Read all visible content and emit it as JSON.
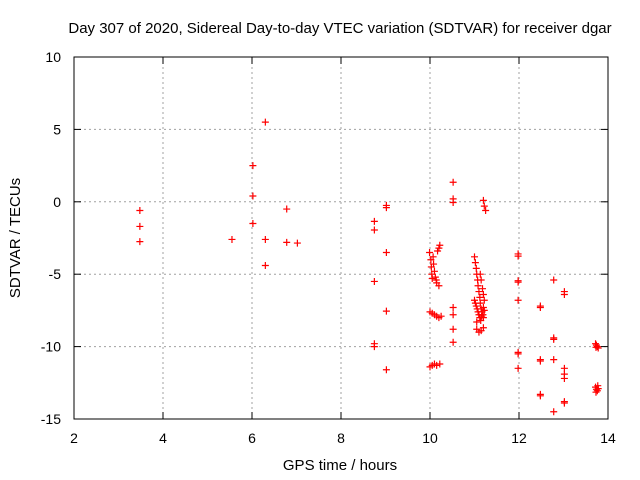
{
  "chart_data": {
    "type": "scatter",
    "title": "Day 307 of 2020, Sidereal Day-to-day VTEC variation (SDTVAR) for receiver dgar",
    "xlabel": "GPS time / hours",
    "ylabel": "SDTVAR / TECUs",
    "xlim": [
      2,
      14
    ],
    "ylim": [
      -15,
      10
    ],
    "xticks": [
      "2",
      "4",
      "6",
      "8",
      "10",
      "12",
      "14"
    ],
    "yticks": [
      "10",
      "5",
      "0",
      "-5",
      "-10",
      "-15"
    ],
    "xtick_values": [
      2,
      4,
      6,
      8,
      10,
      12,
      14
    ],
    "ytick_values": [
      10,
      5,
      0,
      -5,
      -10,
      -15
    ],
    "grid": true,
    "marker": "+",
    "color": "#ff0000",
    "series": [
      {
        "name": "SDTVAR",
        "points": [
          [
            3.48,
            -0.6
          ],
          [
            3.48,
            -1.7
          ],
          [
            3.48,
            -2.75
          ],
          [
            5.55,
            -2.6
          ],
          [
            6.02,
            2.5
          ],
          [
            6.02,
            0.4
          ],
          [
            6.02,
            -1.5
          ],
          [
            6.3,
            5.5
          ],
          [
            6.3,
            -2.6
          ],
          [
            6.3,
            -4.4
          ],
          [
            6.78,
            -0.5
          ],
          [
            6.78,
            -2.8
          ],
          [
            7.02,
            -2.85
          ],
          [
            8.75,
            -1.35
          ],
          [
            8.75,
            -1.95
          ],
          [
            8.75,
            -5.5
          ],
          [
            8.75,
            -9.8
          ],
          [
            8.75,
            -10.0
          ],
          [
            9.02,
            -0.25
          ],
          [
            9.02,
            -0.4
          ],
          [
            9.02,
            -3.5
          ],
          [
            9.02,
            -7.55
          ],
          [
            9.02,
            -11.6
          ],
          [
            9.99,
            -3.5
          ],
          [
            10.02,
            -4.0
          ],
          [
            10.03,
            -4.5
          ],
          [
            10.04,
            -5.0
          ],
          [
            10.05,
            -5.3
          ],
          [
            10.07,
            -3.8
          ],
          [
            10.08,
            -4.3
          ],
          [
            10.1,
            -4.8
          ],
          [
            10.12,
            -5.2
          ],
          [
            10.14,
            -5.4
          ],
          [
            10.17,
            -3.4
          ],
          [
            10.2,
            -3.2
          ],
          [
            10.22,
            -3.0
          ],
          [
            10.15,
            -5.6
          ],
          [
            10.2,
            -5.8
          ],
          [
            10.0,
            -7.6
          ],
          [
            10.05,
            -7.7
          ],
          [
            10.1,
            -7.8
          ],
          [
            10.15,
            -7.9
          ],
          [
            10.2,
            -8.0
          ],
          [
            10.25,
            -7.9
          ],
          [
            10.0,
            -11.4
          ],
          [
            10.05,
            -11.3
          ],
          [
            10.1,
            -11.2
          ],
          [
            10.15,
            -11.3
          ],
          [
            10.22,
            -11.2
          ],
          [
            10.52,
            1.35
          ],
          [
            10.52,
            0.2
          ],
          [
            10.52,
            -0.05
          ],
          [
            10.52,
            -7.3
          ],
          [
            10.52,
            -7.8
          ],
          [
            10.52,
            -8.8
          ],
          [
            10.52,
            -9.7
          ],
          [
            11.0,
            -3.8
          ],
          [
            11.02,
            -4.2
          ],
          [
            11.04,
            -4.6
          ],
          [
            11.05,
            -5.0
          ],
          [
            11.07,
            -5.4
          ],
          [
            11.08,
            -5.8
          ],
          [
            11.1,
            -6.2
          ],
          [
            11.12,
            -6.6
          ],
          [
            11.13,
            -7.0
          ],
          [
            11.15,
            -7.4
          ],
          [
            11.17,
            -7.6
          ],
          [
            11.19,
            -7.8
          ],
          [
            11.2,
            -8.0
          ],
          [
            11.22,
            -7.5
          ],
          [
            11.0,
            -6.8
          ],
          [
            11.02,
            -7.0
          ],
          [
            11.04,
            -7.2
          ],
          [
            11.06,
            -7.4
          ],
          [
            11.08,
            -7.6
          ],
          [
            11.1,
            -7.8
          ],
          [
            11.12,
            -8.0
          ],
          [
            11.14,
            -8.2
          ],
          [
            11.16,
            -7.9
          ],
          [
            11.2,
            -7.3
          ],
          [
            11.22,
            -6.8
          ],
          [
            11.2,
            -6.4
          ],
          [
            11.18,
            -6.0
          ],
          [
            11.15,
            -5.4
          ],
          [
            11.13,
            -5.0
          ],
          [
            11.05,
            -8.3
          ],
          [
            11.05,
            -8.8
          ],
          [
            11.1,
            -9.0
          ],
          [
            11.15,
            -8.9
          ],
          [
            11.2,
            -8.7
          ],
          [
            11.2,
            0.1
          ],
          [
            11.22,
            -0.3
          ],
          [
            11.25,
            -0.6
          ],
          [
            11.98,
            -3.6
          ],
          [
            11.98,
            -3.75
          ],
          [
            11.98,
            -5.45
          ],
          [
            11.98,
            -5.55
          ],
          [
            11.98,
            -6.8
          ],
          [
            11.98,
            -10.4
          ],
          [
            11.98,
            -10.5
          ],
          [
            11.98,
            -11.5
          ],
          [
            12.48,
            -7.2
          ],
          [
            12.48,
            -7.3
          ],
          [
            12.48,
            -10.9
          ],
          [
            12.48,
            -11.0
          ],
          [
            12.48,
            -13.3
          ],
          [
            12.48,
            -13.4
          ],
          [
            12.78,
            -5.4
          ],
          [
            12.78,
            -9.4
          ],
          [
            12.78,
            -9.5
          ],
          [
            12.78,
            -10.9
          ],
          [
            12.78,
            -14.5
          ],
          [
            13.02,
            -6.2
          ],
          [
            13.02,
            -6.4
          ],
          [
            13.02,
            -11.5
          ],
          [
            13.02,
            -11.9
          ],
          [
            13.02,
            -12.2
          ],
          [
            13.02,
            -13.8
          ],
          [
            13.02,
            -13.9
          ],
          [
            13.72,
            -9.8
          ],
          [
            13.74,
            -9.9
          ],
          [
            13.76,
            -10.0
          ],
          [
            13.78,
            -10.1
          ],
          [
            13.73,
            -10.05
          ],
          [
            13.72,
            -12.8
          ],
          [
            13.74,
            -12.95
          ],
          [
            13.76,
            -13.05
          ],
          [
            13.78,
            -12.9
          ],
          [
            13.73,
            -13.15
          ],
          [
            13.77,
            -12.7
          ]
        ]
      }
    ]
  }
}
